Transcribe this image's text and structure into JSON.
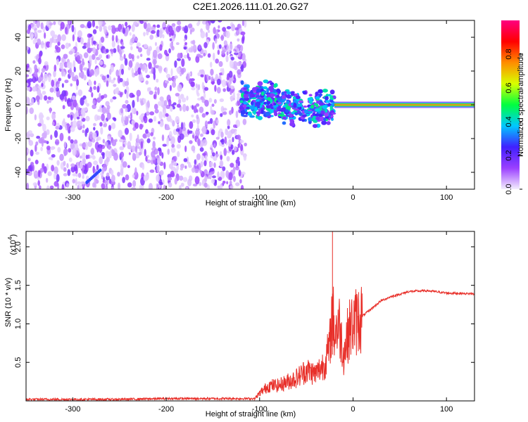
{
  "title": "C2E1.2026.111.01.20.G27",
  "chart_data": [
    {
      "type": "heatmap",
      "xlabel": "Height of straight line (km)",
      "ylabel": "Frequency (Hz)",
      "xlim": [
        -350,
        130
      ],
      "ylim": [
        -50,
        50
      ],
      "xticks": [
        -300,
        -200,
        -100,
        0,
        100
      ],
      "yticks": [
        -40,
        -20,
        0,
        20,
        40
      ],
      "colorbar": {
        "label": "Normalized spectral amplitude",
        "range": [
          0,
          1
        ],
        "ticks": [
          0.0,
          0.2,
          0.4,
          0.6,
          0.8
        ],
        "colors": [
          "#f4eefe",
          "#9b40ff",
          "#4020ff",
          "#00c8ff",
          "#00ff40",
          "#d8ff00",
          "#ff8c00",
          "#ff0000",
          "#ff0080"
        ]
      },
      "regions": [
        {
          "x": [
            -350,
            -115
          ],
          "description_level": 0.15
        },
        {
          "x": [
            -120,
            -20
          ],
          "band_hz": [
            -15,
            15
          ],
          "peak_level": 0.45
        },
        {
          "x": [
            -20,
            130
          ],
          "band_hz": [
            -1,
            1
          ],
          "peak_level": 0.8
        }
      ]
    },
    {
      "type": "line",
      "xlabel": "Height of straight line (km)",
      "ylabel": "SNR (10 * v/v)",
      "y_multiplier": "(x10",
      "y_multiplier_exp": "4",
      "y_multiplier_close": ")",
      "xlim": [
        -350,
        130
      ],
      "ylim": [
        0,
        2.2
      ],
      "xticks": [
        -300,
        -200,
        -100,
        0,
        100
      ],
      "yticks": [
        0.5,
        1.0,
        1.5,
        2.0
      ],
      "series": [
        {
          "color": "#e8302a",
          "x": [
            -350,
            -300,
            -250,
            -200,
            -150,
            -105,
            -100,
            -90,
            -80,
            -70,
            -60,
            -50,
            -40,
            -30,
            -25,
            -22,
            -20,
            -15,
            -10,
            -5,
            0,
            10,
            20,
            30,
            40,
            60,
            80,
            100,
            130
          ],
          "y": [
            0.02,
            0.02,
            0.02,
            0.03,
            0.03,
            0.03,
            0.1,
            0.2,
            0.2,
            0.25,
            0.3,
            0.4,
            0.35,
            0.5,
            0.7,
            1.2,
            0.9,
            1.0,
            0.6,
            0.9,
            1.0,
            1.1,
            1.2,
            1.3,
            1.35,
            1.42,
            1.43,
            1.4,
            1.39
          ]
        }
      ]
    }
  ]
}
